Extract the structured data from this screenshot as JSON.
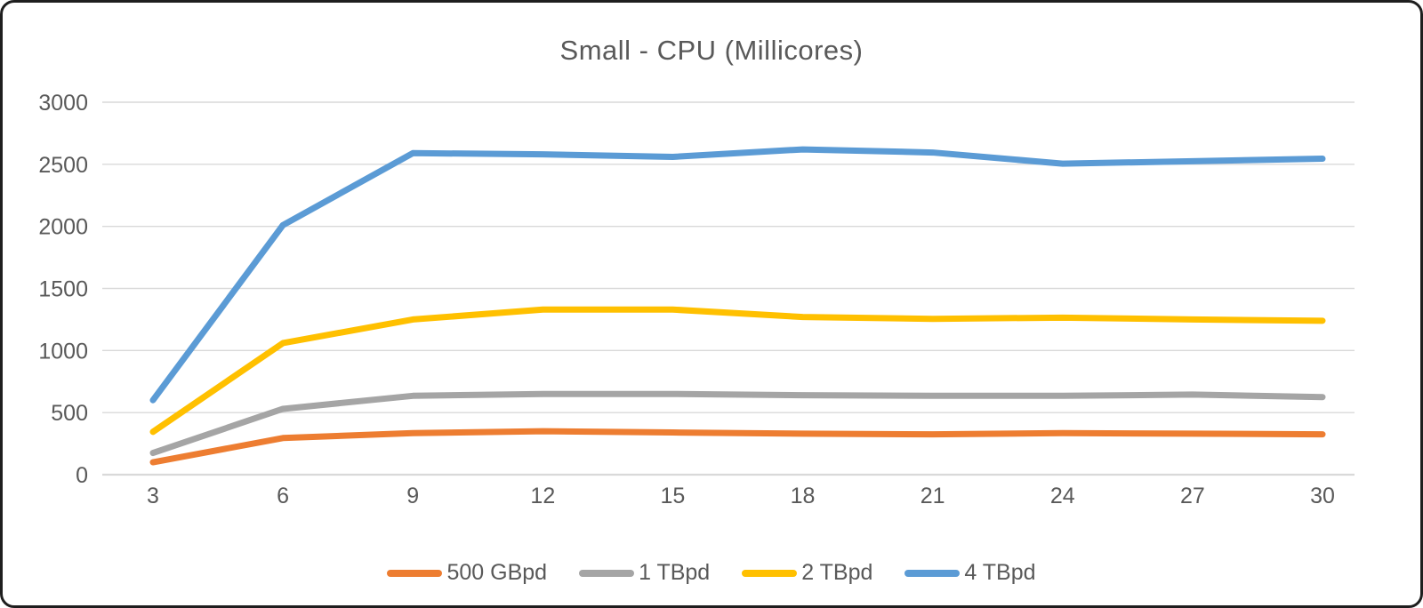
{
  "window": {
    "background_color": "#ffffff",
    "border_color": "#1e1e1e"
  },
  "chart_data": {
    "type": "line",
    "title": "Small - CPU (Millicores)",
    "xlabel": "",
    "ylabel": "",
    "x": [
      3,
      6,
      9,
      12,
      15,
      18,
      21,
      24,
      27,
      30
    ],
    "series": [
      {
        "name": "500 GBpd",
        "color": "#ED7D31",
        "values": [
          100,
          295,
          335,
          350,
          340,
          330,
          325,
          335,
          330,
          325
        ]
      },
      {
        "name": "1 TBpd",
        "color": "#A5A5A5",
        "values": [
          175,
          530,
          635,
          650,
          650,
          640,
          635,
          635,
          645,
          625
        ]
      },
      {
        "name": "2 TBpd",
        "color": "#FFC000",
        "values": [
          345,
          1060,
          1250,
          1330,
          1330,
          1270,
          1255,
          1265,
          1250,
          1240
        ]
      },
      {
        "name": "4 TBpd",
        "color": "#5B9BD5",
        "values": [
          600,
          2010,
          2590,
          2580,
          2560,
          2620,
          2595,
          2505,
          2525,
          2545
        ]
      }
    ],
    "ylim": [
      0,
      3000
    ],
    "yticks": [
      0,
      500,
      1000,
      1500,
      2000,
      2500,
      3000
    ],
    "grid": true,
    "gridline_color": "#D9D9D9",
    "axis_text_color": "#595959",
    "title_color": "#595959",
    "legend_position": "bottom",
    "line_width": 7
  }
}
